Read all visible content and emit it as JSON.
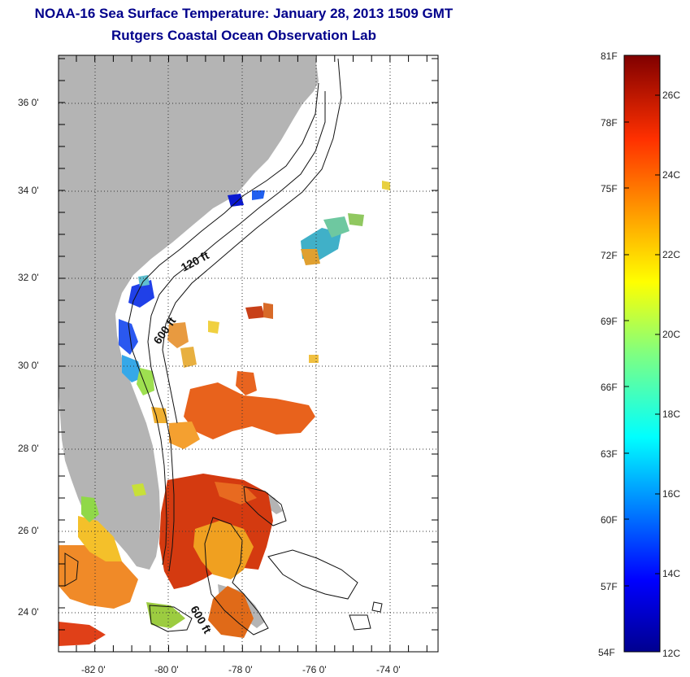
{
  "title_line1": "NOAA-16 Sea Surface Temperature:  January 28, 2013 1509 GMT",
  "title_line2": "Rutgers Coastal Ocean Observation Lab",
  "map": {
    "lat_labels": [
      "36 0'",
      "34 0'",
      "32 0'",
      "30 0'",
      "28 0'",
      "26 0'",
      "24 0'"
    ],
    "lon_labels": [
      "-82 0'",
      "-80 0'",
      "-78 0'",
      "-76 0'",
      "-74 0'"
    ],
    "lon_range": [
      -83,
      -72.5
    ],
    "lat_range": [
      23,
      37
    ],
    "land_color": "#b4b4b4",
    "contour_labels": [
      "120 ft",
      "600 ft",
      "600 ft"
    ]
  },
  "colorbar": {
    "fahrenheit": [
      "81F",
      "78F",
      "75F",
      "72F",
      "69F",
      "66F",
      "63F",
      "60F",
      "57F",
      "54F"
    ],
    "celsius": [
      "26C",
      "24C",
      "22C",
      "20C",
      "18C",
      "16C",
      "14C",
      "12C"
    ],
    "range_c": [
      12,
      27
    ]
  }
}
